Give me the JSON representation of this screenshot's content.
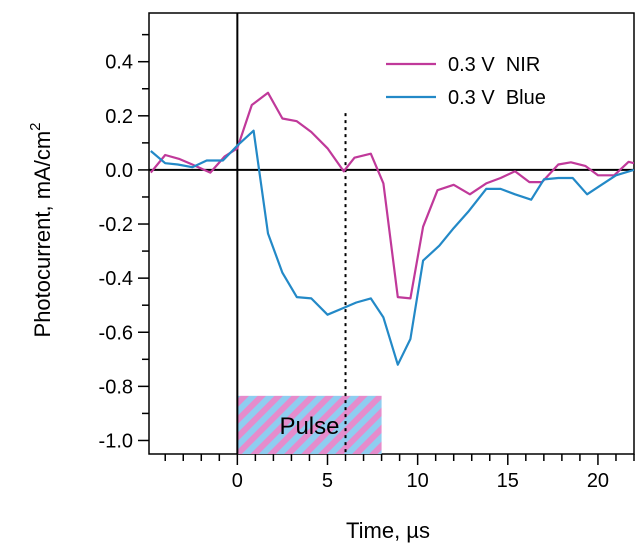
{
  "chart_data": {
    "type": "line",
    "xlabel": "Time, µs",
    "ylabel": "Photocurrent, mA/cm",
    "ylabel_superscript": "2",
    "xlim": [
      -4.9,
      22
    ],
    "ylim": [
      -1.05,
      0.58
    ],
    "x_ticks": [
      0,
      5,
      10,
      15,
      20
    ],
    "y_ticks": [
      -1.0,
      -0.8,
      -0.6,
      -0.4,
      -0.2,
      0.0,
      0.2,
      0.4
    ],
    "x_tick_labels": [
      "0",
      "5",
      "10",
      "15",
      "20"
    ],
    "y_tick_labels": [
      "-1.0",
      "-0.8",
      "-0.6",
      "-0.4",
      "-0.2",
      "0.0",
      "0.2",
      "0.4"
    ],
    "legend_position": "top-right",
    "series": [
      {
        "name": "0.3 V  NIR",
        "color": "#c0399a",
        "x": [
          -4.8,
          -4.0,
          -3.2,
          -2.5,
          -1.5,
          -0.7,
          0.0,
          0.8,
          1.7,
          2.5,
          3.3,
          4.1,
          5.0,
          5.9,
          6.5,
          7.4,
          8.1,
          8.9,
          9.6,
          10.3,
          11.1,
          12.0,
          12.9,
          13.8,
          14.6,
          15.4,
          16.2,
          16.9,
          17.8,
          18.5,
          19.3,
          20.0,
          20.9,
          21.7,
          22.0
        ],
        "y": [
          -0.01,
          0.055,
          0.04,
          0.02,
          -0.01,
          0.05,
          0.08,
          0.24,
          0.285,
          0.19,
          0.18,
          0.14,
          0.08,
          -0.005,
          0.045,
          0.06,
          -0.05,
          -0.47,
          -0.475,
          -0.21,
          -0.075,
          -0.055,
          -0.09,
          -0.05,
          -0.03,
          -0.005,
          -0.045,
          -0.045,
          0.02,
          0.028,
          0.015,
          -0.02,
          -0.02,
          0.03,
          0.025
        ]
      },
      {
        "name": "0.3 V  Blue",
        "color": "#2389c7",
        "x": [
          -4.8,
          -4.0,
          -3.3,
          -2.5,
          -1.7,
          -0.8,
          0.0,
          0.9,
          1.7,
          2.5,
          3.3,
          4.1,
          5.0,
          5.9,
          6.6,
          7.4,
          8.1,
          8.9,
          9.6,
          10.3,
          11.2,
          12.0,
          12.8,
          13.8,
          14.6,
          15.4,
          16.3,
          17.0,
          17.8,
          18.6,
          19.4,
          20.2,
          21.0,
          22.0
        ],
        "y": [
          0.07,
          0.025,
          0.02,
          0.01,
          0.035,
          0.035,
          0.09,
          0.145,
          -0.235,
          -0.38,
          -0.47,
          -0.475,
          -0.535,
          -0.51,
          -0.49,
          -0.475,
          -0.545,
          -0.72,
          -0.625,
          -0.335,
          -0.28,
          -0.215,
          -0.155,
          -0.07,
          -0.07,
          -0.09,
          -0.11,
          -0.035,
          -0.03,
          -0.03,
          -0.09,
          -0.055,
          -0.02,
          0.0
        ]
      }
    ],
    "reference_lines": [
      {
        "orientation": "horizontal",
        "value": 0.0,
        "style": "solid",
        "color": "#000000"
      },
      {
        "orientation": "vertical",
        "value": 0.0,
        "style": "solid",
        "color": "#000000"
      },
      {
        "orientation": "vertical",
        "value": 6.0,
        "style": "dotted",
        "color": "#000000",
        "y_from": -1.05,
        "y_to": 0.21
      }
    ],
    "annotations": [
      {
        "label": "Pulse",
        "x_from": 0.0,
        "x_to": 8.0,
        "y_from": -1.05,
        "y_to": -0.835,
        "stripe_colors": [
          "#8fcdf0",
          "#e58ccc"
        ]
      }
    ]
  }
}
